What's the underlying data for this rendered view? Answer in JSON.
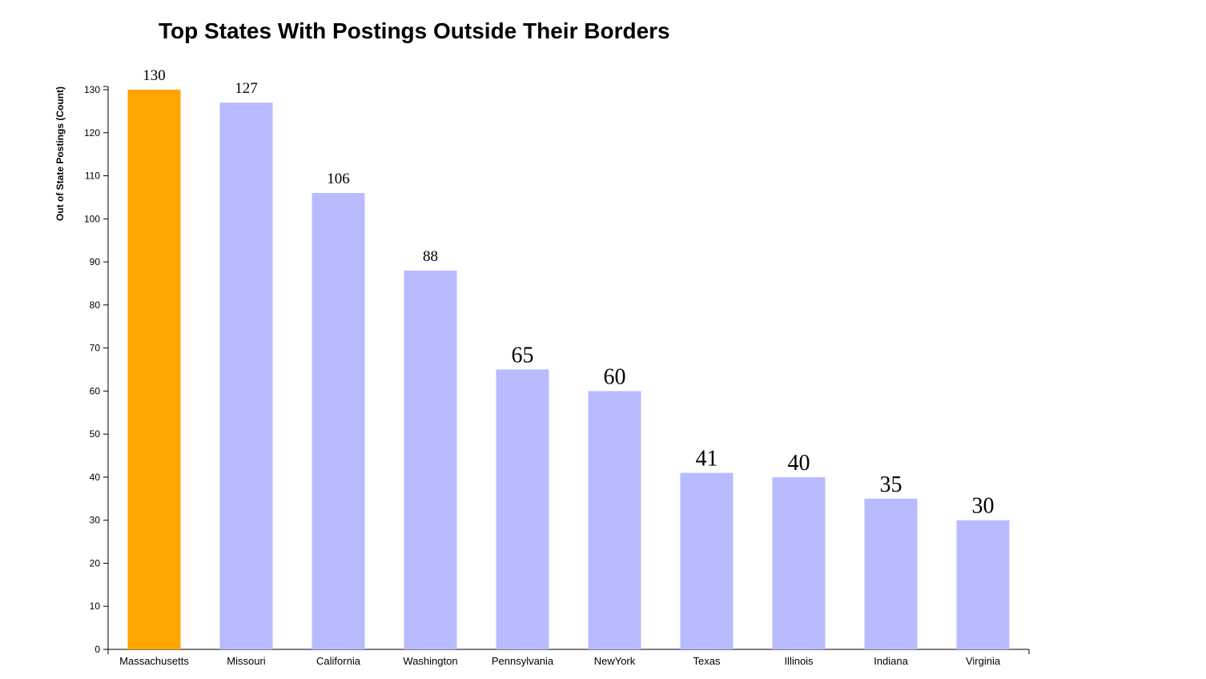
{
  "chart_data": {
    "type": "bar",
    "title": "Top States With Postings Outside Their Borders",
    "xlabel": "",
    "ylabel": "Out of State Postings (Count)",
    "ylim": [
      0,
      130
    ],
    "yticks": [
      0,
      10,
      20,
      30,
      40,
      50,
      60,
      70,
      80,
      90,
      100,
      110,
      120,
      130
    ],
    "categories": [
      "Massachusetts",
      "Missouri",
      "California",
      "Washington",
      "Pennsylvania",
      "NewYork",
      "Texas",
      "Illinois",
      "Indiana",
      "Virginia"
    ],
    "values": [
      130,
      127,
      106,
      88,
      65,
      60,
      41,
      40,
      35,
      30
    ],
    "highlight_index": 0,
    "colors": {
      "highlight": "#FFA500",
      "default": "#B8BBFF",
      "axis": "#000000"
    },
    "grid": false,
    "legend": "none"
  }
}
